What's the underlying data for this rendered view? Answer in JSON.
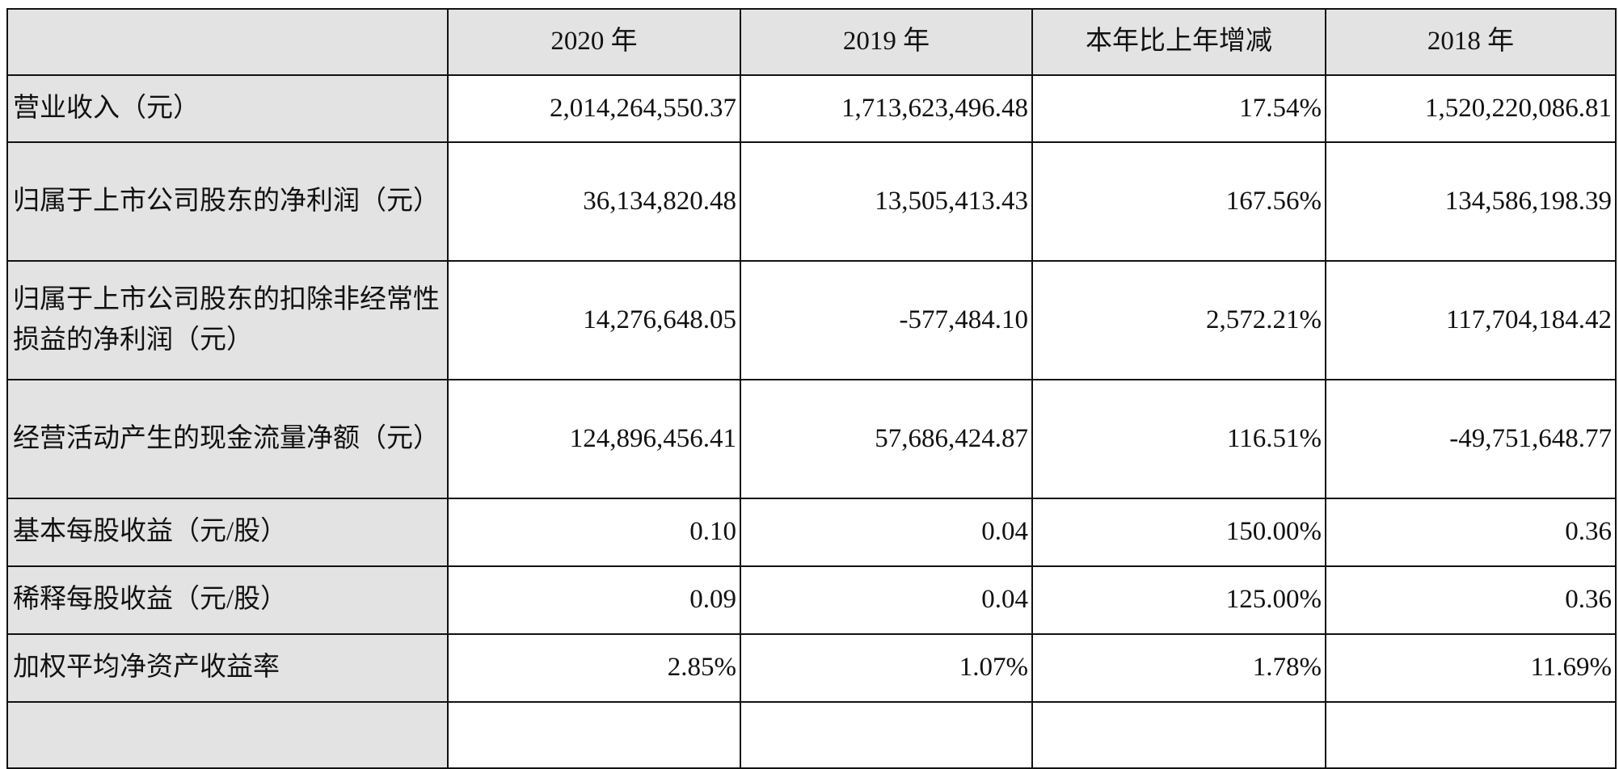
{
  "header": [
    "",
    "2020 年",
    "2019 年",
    "本年比上年增减",
    "2018 年"
  ],
  "rows": [
    {
      "label": "营业收入（元）",
      "values": [
        "2,014,264,550.37",
        "1,713,623,496.48",
        "17.54%",
        "1,520,220,086.81"
      ]
    },
    {
      "label": "归属于上市公司股东的净利润（元）",
      "values": [
        "36,134,820.48",
        "13,505,413.43",
        "167.56%",
        "134,586,198.39"
      ]
    },
    {
      "label": "归属于上市公司股东的扣除非经常性损益的净利润（元）",
      "values": [
        "14,276,648.05",
        "-577,484.10",
        "2,572.21%",
        "117,704,184.42"
      ]
    },
    {
      "label": "经营活动产生的现金流量净额（元）",
      "values": [
        "124,896,456.41",
        "57,686,424.87",
        "116.51%",
        "-49,751,648.77"
      ]
    },
    {
      "label": "基本每股收益（元/股）",
      "values": [
        "0.10",
        "0.04",
        "150.00%",
        "0.36"
      ]
    },
    {
      "label": "稀释每股收益（元/股）",
      "values": [
        "0.09",
        "0.04",
        "125.00%",
        "0.36"
      ]
    },
    {
      "label": "加权平均净资产收益率",
      "values": [
        "2.85%",
        "1.07%",
        "1.78%",
        "11.69%"
      ]
    }
  ]
}
